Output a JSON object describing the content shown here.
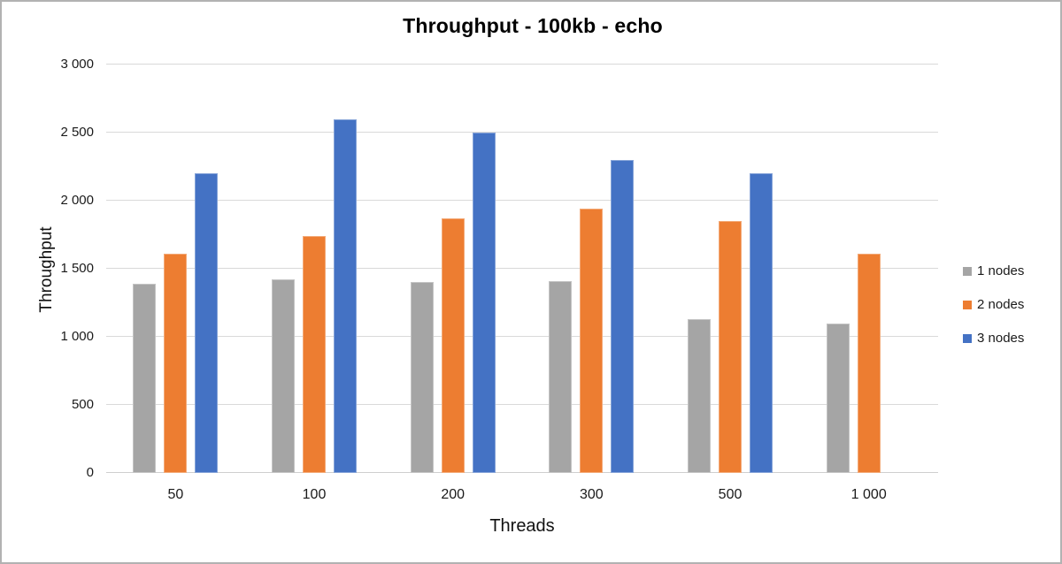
{
  "chart_data": {
    "type": "bar",
    "title": "Throughput - 100kb - echo",
    "xlabel": "Threads",
    "ylabel": "Throughput",
    "categories": [
      "50",
      "100",
      "200",
      "300",
      "500",
      "1 000"
    ],
    "series": [
      {
        "name": "1 nodes",
        "color": "#A5A5A5",
        "values": [
          1390,
          1420,
          1400,
          1410,
          1130,
          1100
        ]
      },
      {
        "name": "2 nodes",
        "color": "#ED7D31",
        "values": [
          1610,
          1740,
          1870,
          1940,
          1850,
          1610
        ]
      },
      {
        "name": "3 nodes",
        "color": "#4472C4",
        "values": [
          2200,
          2600,
          2500,
          2300,
          2200,
          null
        ]
      }
    ],
    "ylim": [
      0,
      3000
    ],
    "ytick_step": 500,
    "y_tick_labels": [
      "0",
      "500",
      "1 000",
      "1 500",
      "2 000",
      "2 500",
      "3 000"
    ],
    "grid": true,
    "legend_position": "right"
  },
  "colors": {
    "gridline": "#d9d9d9",
    "frame_border": "#b2b2b2",
    "text": "#1a1a1a"
  }
}
